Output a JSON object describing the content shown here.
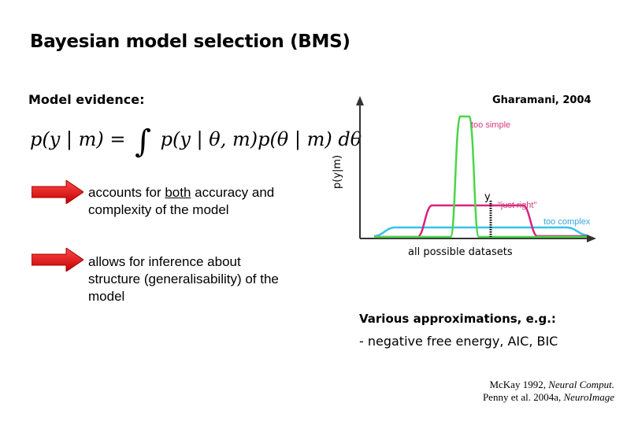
{
  "title": "Bayesian model selection (BMS)",
  "evidence_label": "Model evidence:",
  "equation": {
    "lhs": "p(y | m) =",
    "rhs": "p(y | θ, m)p(θ | m) dθ"
  },
  "bullets": [
    {
      "pre": "accounts for ",
      "underlined": "both",
      "post": " accuracy and complexity of the model"
    },
    {
      "text": "allows for inference about structure (generalisability) of the model"
    }
  ],
  "figure": {
    "attribution": "Gharamani, 2004",
    "ylabel": "p(y|m)",
    "xlabel": "all possible datasets",
    "y_marker": "y",
    "curves": {
      "too_simple": "too simple",
      "just_right": "\"just right\"",
      "too_complex": "too complex"
    },
    "colors": {
      "too_simple": "#49d64a",
      "just_right": "#d9237c",
      "too_complex": "#36c3ea"
    }
  },
  "approximations": {
    "heading": "Various approximations, e.g.:",
    "item": "- negative free energy, AIC, BIC"
  },
  "references": [
    {
      "authors": "McKay 1992, ",
      "journal": "Neural Comput."
    },
    {
      "authors": "Penny et al. 2004a, ",
      "journal": "NeuroImage"
    }
  ],
  "accent_color": "#e11b1b"
}
